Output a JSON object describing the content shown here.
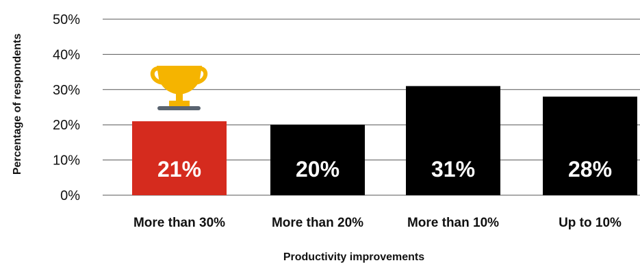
{
  "chart_data": {
    "type": "bar",
    "categories": [
      "More than 30%",
      "More than 20%",
      "More than 10%",
      "Up to 10%"
    ],
    "values": [
      21,
      20,
      31,
      28
    ],
    "data_labels": [
      "21%",
      "20%",
      "31%",
      "28%"
    ],
    "highlight_index": 0,
    "highlight_icon": "trophy-icon",
    "title": "",
    "xlabel": "Productivity improvements",
    "ylabel": "Percentage of respondents",
    "ylim": [
      0,
      50
    ],
    "yticks": [
      0,
      10,
      20,
      30,
      40,
      50
    ],
    "ytick_labels": [
      "0%",
      "10%",
      "20%",
      "30%",
      "40%",
      "50%"
    ],
    "grid": true,
    "colors": {
      "highlight": "#d52b1e",
      "default": "#000000",
      "trophy": "#f5b400",
      "trophy_base": "#5a6470"
    }
  }
}
